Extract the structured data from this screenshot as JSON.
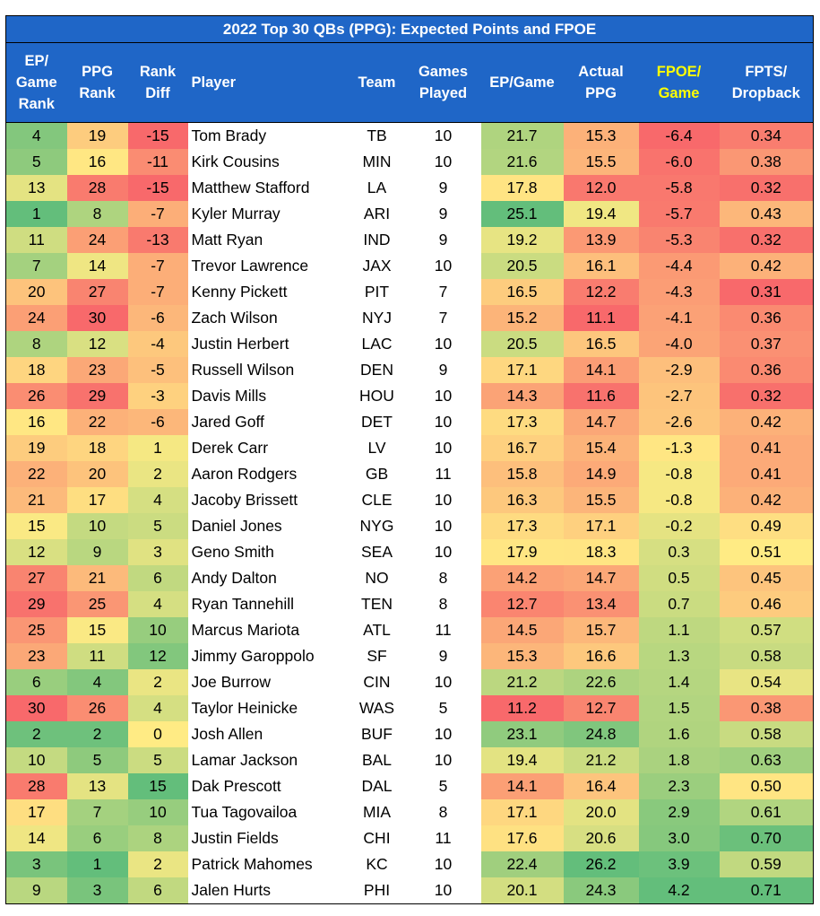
{
  "title": "2022 Top 30 QBs (PPG): Expected Points and FPOE",
  "headers": [
    [
      "EP/",
      "Game",
      "Rank"
    ],
    [
      "PPG",
      "Rank"
    ],
    [
      "Rank",
      "Diff"
    ],
    [
      "Player"
    ],
    [
      "Team"
    ],
    [
      "Games",
      "Played"
    ],
    [
      "EP/Game"
    ],
    [
      "Actual",
      "PPG"
    ],
    [
      "FPOE/",
      "Game"
    ],
    [
      "FPTS/",
      "Dropback"
    ]
  ],
  "colors": {
    "header_bg": "#1f66c7",
    "header_text": "#ffffff",
    "fpoe_header_text": "#ffff00",
    "scale_red": "#f8696b",
    "scale_yellow": "#ffeb84",
    "scale_green": "#63be7b"
  },
  "rows": [
    {
      "ep_rank": "4",
      "ppg_rank": "19",
      "rank_diff": "-15",
      "player": "Tom Brady",
      "team": "TB",
      "games": "10",
      "ep_game": "21.7",
      "actual_ppg": "15.3",
      "fpoe": "-6.4",
      "fpts_db": "0.34"
    },
    {
      "ep_rank": "5",
      "ppg_rank": "16",
      "rank_diff": "-11",
      "player": "Kirk Cousins",
      "team": "MIN",
      "games": "10",
      "ep_game": "21.6",
      "actual_ppg": "15.5",
      "fpoe": "-6.0",
      "fpts_db": "0.38"
    },
    {
      "ep_rank": "13",
      "ppg_rank": "28",
      "rank_diff": "-15",
      "player": "Matthew Stafford",
      "team": "LA",
      "games": "9",
      "ep_game": "17.8",
      "actual_ppg": "12.0",
      "fpoe": "-5.8",
      "fpts_db": "0.32"
    },
    {
      "ep_rank": "1",
      "ppg_rank": "8",
      "rank_diff": "-7",
      "player": "Kyler Murray",
      "team": "ARI",
      "games": "9",
      "ep_game": "25.1",
      "actual_ppg": "19.4",
      "fpoe": "-5.7",
      "fpts_db": "0.43"
    },
    {
      "ep_rank": "11",
      "ppg_rank": "24",
      "rank_diff": "-13",
      "player": "Matt Ryan",
      "team": "IND",
      "games": "9",
      "ep_game": "19.2",
      "actual_ppg": "13.9",
      "fpoe": "-5.3",
      "fpts_db": "0.32"
    },
    {
      "ep_rank": "7",
      "ppg_rank": "14",
      "rank_diff": "-7",
      "player": "Trevor Lawrence",
      "team": "JAX",
      "games": "10",
      "ep_game": "20.5",
      "actual_ppg": "16.1",
      "fpoe": "-4.4",
      "fpts_db": "0.42"
    },
    {
      "ep_rank": "20",
      "ppg_rank": "27",
      "rank_diff": "-7",
      "player": "Kenny Pickett",
      "team": "PIT",
      "games": "7",
      "ep_game": "16.5",
      "actual_ppg": "12.2",
      "fpoe": "-4.3",
      "fpts_db": "0.31"
    },
    {
      "ep_rank": "24",
      "ppg_rank": "30",
      "rank_diff": "-6",
      "player": "Zach Wilson",
      "team": "NYJ",
      "games": "7",
      "ep_game": "15.2",
      "actual_ppg": "11.1",
      "fpoe": "-4.1",
      "fpts_db": "0.36"
    },
    {
      "ep_rank": "8",
      "ppg_rank": "12",
      "rank_diff": "-4",
      "player": "Justin Herbert",
      "team": "LAC",
      "games": "10",
      "ep_game": "20.5",
      "actual_ppg": "16.5",
      "fpoe": "-4.0",
      "fpts_db": "0.37"
    },
    {
      "ep_rank": "18",
      "ppg_rank": "23",
      "rank_diff": "-5",
      "player": "Russell Wilson",
      "team": "DEN",
      "games": "9",
      "ep_game": "17.1",
      "actual_ppg": "14.1",
      "fpoe": "-2.9",
      "fpts_db": "0.36"
    },
    {
      "ep_rank": "26",
      "ppg_rank": "29",
      "rank_diff": "-3",
      "player": "Davis Mills",
      "team": "HOU",
      "games": "10",
      "ep_game": "14.3",
      "actual_ppg": "11.6",
      "fpoe": "-2.7",
      "fpts_db": "0.32"
    },
    {
      "ep_rank": "16",
      "ppg_rank": "22",
      "rank_diff": "-6",
      "player": "Jared Goff",
      "team": "DET",
      "games": "10",
      "ep_game": "17.3",
      "actual_ppg": "14.7",
      "fpoe": "-2.6",
      "fpts_db": "0.42"
    },
    {
      "ep_rank": "19",
      "ppg_rank": "18",
      "rank_diff": "1",
      "player": "Derek Carr",
      "team": "LV",
      "games": "10",
      "ep_game": "16.7",
      "actual_ppg": "15.4",
      "fpoe": "-1.3",
      "fpts_db": "0.41"
    },
    {
      "ep_rank": "22",
      "ppg_rank": "20",
      "rank_diff": "2",
      "player": "Aaron Rodgers",
      "team": "GB",
      "games": "11",
      "ep_game": "15.8",
      "actual_ppg": "14.9",
      "fpoe": "-0.8",
      "fpts_db": "0.41"
    },
    {
      "ep_rank": "21",
      "ppg_rank": "17",
      "rank_diff": "4",
      "player": "Jacoby Brissett",
      "team": "CLE",
      "games": "10",
      "ep_game": "16.3",
      "actual_ppg": "15.5",
      "fpoe": "-0.8",
      "fpts_db": "0.42"
    },
    {
      "ep_rank": "15",
      "ppg_rank": "10",
      "rank_diff": "5",
      "player": "Daniel Jones",
      "team": "NYG",
      "games": "10",
      "ep_game": "17.3",
      "actual_ppg": "17.1",
      "fpoe": "-0.2",
      "fpts_db": "0.49"
    },
    {
      "ep_rank": "12",
      "ppg_rank": "9",
      "rank_diff": "3",
      "player": "Geno Smith",
      "team": "SEA",
      "games": "10",
      "ep_game": "17.9",
      "actual_ppg": "18.3",
      "fpoe": "0.3",
      "fpts_db": "0.51"
    },
    {
      "ep_rank": "27",
      "ppg_rank": "21",
      "rank_diff": "6",
      "player": "Andy Dalton",
      "team": "NO",
      "games": "8",
      "ep_game": "14.2",
      "actual_ppg": "14.7",
      "fpoe": "0.5",
      "fpts_db": "0.45"
    },
    {
      "ep_rank": "29",
      "ppg_rank": "25",
      "rank_diff": "4",
      "player": "Ryan Tannehill",
      "team": "TEN",
      "games": "8",
      "ep_game": "12.7",
      "actual_ppg": "13.4",
      "fpoe": "0.7",
      "fpts_db": "0.46"
    },
    {
      "ep_rank": "25",
      "ppg_rank": "15",
      "rank_diff": "10",
      "player": "Marcus Mariota",
      "team": "ATL",
      "games": "11",
      "ep_game": "14.5",
      "actual_ppg": "15.7",
      "fpoe": "1.1",
      "fpts_db": "0.57"
    },
    {
      "ep_rank": "23",
      "ppg_rank": "11",
      "rank_diff": "12",
      "player": "Jimmy Garoppolo",
      "team": "SF",
      "games": "9",
      "ep_game": "15.3",
      "actual_ppg": "16.6",
      "fpoe": "1.3",
      "fpts_db": "0.58"
    },
    {
      "ep_rank": "6",
      "ppg_rank": "4",
      "rank_diff": "2",
      "player": "Joe Burrow",
      "team": "CIN",
      "games": "10",
      "ep_game": "21.2",
      "actual_ppg": "22.6",
      "fpoe": "1.4",
      "fpts_db": "0.54"
    },
    {
      "ep_rank": "30",
      "ppg_rank": "26",
      "rank_diff": "4",
      "player": "Taylor Heinicke",
      "team": "WAS",
      "games": "5",
      "ep_game": "11.2",
      "actual_ppg": "12.7",
      "fpoe": "1.5",
      "fpts_db": "0.38"
    },
    {
      "ep_rank": "2",
      "ppg_rank": "2",
      "rank_diff": "0",
      "player": "Josh Allen",
      "team": "BUF",
      "games": "10",
      "ep_game": "23.1",
      "actual_ppg": "24.8",
      "fpoe": "1.6",
      "fpts_db": "0.58"
    },
    {
      "ep_rank": "10",
      "ppg_rank": "5",
      "rank_diff": "5",
      "player": "Lamar Jackson",
      "team": "BAL",
      "games": "10",
      "ep_game": "19.4",
      "actual_ppg": "21.2",
      "fpoe": "1.8",
      "fpts_db": "0.63"
    },
    {
      "ep_rank": "28",
      "ppg_rank": "13",
      "rank_diff": "15",
      "player": "Dak Prescott",
      "team": "DAL",
      "games": "5",
      "ep_game": "14.1",
      "actual_ppg": "16.4",
      "fpoe": "2.3",
      "fpts_db": "0.50"
    },
    {
      "ep_rank": "17",
      "ppg_rank": "7",
      "rank_diff": "10",
      "player": "Tua Tagovailoa",
      "team": "MIA",
      "games": "8",
      "ep_game": "17.1",
      "actual_ppg": "20.0",
      "fpoe": "2.9",
      "fpts_db": "0.61"
    },
    {
      "ep_rank": "14",
      "ppg_rank": "6",
      "rank_diff": "8",
      "player": "Justin Fields",
      "team": "CHI",
      "games": "11",
      "ep_game": "17.6",
      "actual_ppg": "20.6",
      "fpoe": "3.0",
      "fpts_db": "0.70"
    },
    {
      "ep_rank": "3",
      "ppg_rank": "1",
      "rank_diff": "2",
      "player": "Patrick Mahomes",
      "team": "KC",
      "games": "10",
      "ep_game": "22.4",
      "actual_ppg": "26.2",
      "fpoe": "3.9",
      "fpts_db": "0.59"
    },
    {
      "ep_rank": "9",
      "ppg_rank": "3",
      "rank_diff": "6",
      "player": "Jalen Hurts",
      "team": "PHI",
      "games": "10",
      "ep_game": "20.1",
      "actual_ppg": "24.3",
      "fpoe": "4.2",
      "fpts_db": "0.71"
    }
  ]
}
